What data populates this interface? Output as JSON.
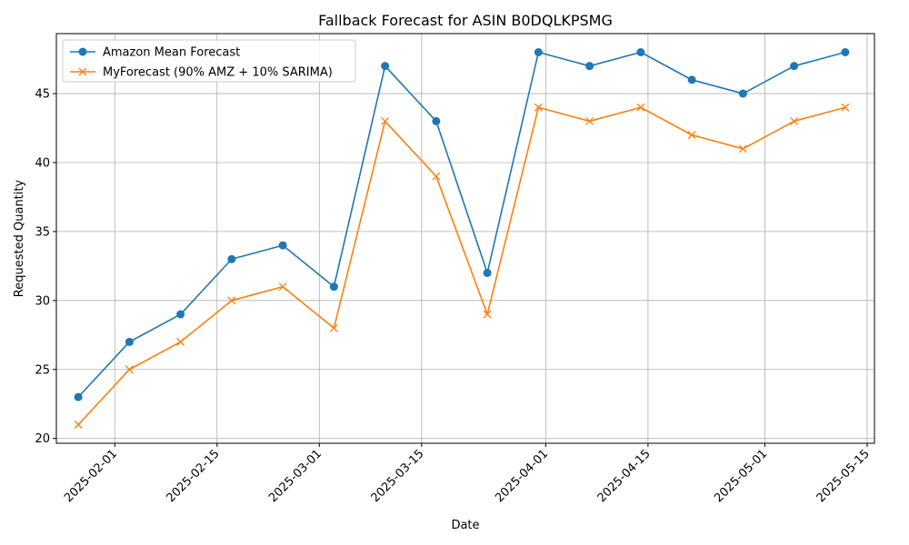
{
  "chart_data": {
    "type": "line",
    "title": "Fallback Forecast for ASIN B0DQLKPSMG",
    "xlabel": "Date",
    "ylabel": "Requested Quantity",
    "x": [
      "2025-01-27",
      "2025-02-03",
      "2025-02-10",
      "2025-02-17",
      "2025-02-24",
      "2025-03-03",
      "2025-03-10",
      "2025-03-17",
      "2025-03-24",
      "2025-03-31",
      "2025-04-07",
      "2025-04-14",
      "2025-04-21",
      "2025-04-28",
      "2025-05-05",
      "2025-05-12"
    ],
    "x_ticks": [
      "2025-02-01",
      "2025-02-15",
      "2025-03-01",
      "2025-03-15",
      "2025-04-01",
      "2025-04-15",
      "2025-05-01",
      "2025-05-15"
    ],
    "xlim": [
      "2025-01-24",
      "2025-05-16"
    ],
    "y_ticks": [
      20,
      25,
      30,
      35,
      40,
      45
    ],
    "ylim": [
      19.65,
      49.35
    ],
    "grid": true,
    "legend_position": "top-left",
    "series": [
      {
        "name": "Amazon Mean Forecast",
        "color": "#1f77b4",
        "marker": "circle",
        "values": [
          23,
          27,
          29,
          33,
          34,
          31,
          47,
          43,
          32,
          48,
          47,
          48,
          46,
          45,
          47,
          48
        ]
      },
      {
        "name": "MyForecast (90% AMZ + 10% SARIMA)",
        "color": "#ff7f0e",
        "marker": "x",
        "values": [
          21,
          25,
          27,
          30,
          31,
          28,
          43,
          39,
          29,
          44,
          43,
          44,
          42,
          41,
          43,
          44
        ]
      }
    ]
  }
}
